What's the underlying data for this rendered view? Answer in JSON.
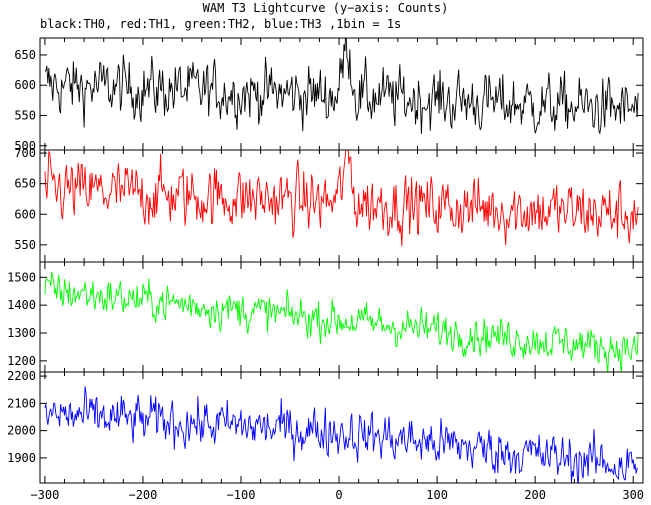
{
  "title": "WAM T3 Lightcurve (y−axis: Counts)",
  "subtitle": "black:TH0, red:TH1, green:TH2, blue:TH3 ,1bin = 1s",
  "chart_data": {
    "type": "line",
    "x_range": [
      -305,
      310
    ],
    "x_ticks": [
      -300,
      -200,
      -100,
      0,
      100,
      200,
      300
    ],
    "x_tick_labels": [
      "−300",
      "−200",
      "−100",
      "0",
      "100",
      "200",
      "300"
    ],
    "bin_size_s": 1,
    "panels": [
      {
        "name": "TH0",
        "color": "#000000",
        "ylim": [
          493,
          678
        ],
        "y_ticks": [
          500,
          550,
          600,
          650
        ],
        "y_tick_labels": [
          "500",
          "550",
          "600",
          "650"
        ],
        "trend": {
          "x": [
            -300,
            0,
            300
          ],
          "y": [
            600,
            583,
            560
          ]
        },
        "noise_sd": 25,
        "burst": {
          "peak_x": 8,
          "peak_y": 670,
          "width": 4
        }
      },
      {
        "name": "TH1",
        "color": "#ff0000",
        "ylim": [
          522,
          705
        ],
        "y_ticks": [
          550,
          600,
          650,
          700
        ],
        "y_tick_labels": [
          "550",
          "600",
          "650",
          "700"
        ],
        "trend": {
          "x": [
            -300,
            0,
            300
          ],
          "y": [
            640,
            620,
            600
          ]
        },
        "noise_sd": 26,
        "burst": {
          "peak_x": 8,
          "peak_y": 695,
          "width": 4
        }
      },
      {
        "name": "TH2",
        "color": "#00ff00",
        "ylim": [
          1160,
          1555
        ],
        "y_ticks": [
          1200,
          1300,
          1400,
          1500
        ],
        "y_tick_labels": [
          "1200",
          "1300",
          "1400",
          "1500"
        ],
        "trend": {
          "x": [
            -300,
            0,
            300
          ],
          "y": [
            1455,
            1345,
            1240
          ]
        },
        "noise_sd": 35,
        "burst": null
      },
      {
        "name": "TH3",
        "color": "#0000ff",
        "ylim": [
          1808,
          2215
        ],
        "y_ticks": [
          1900,
          2000,
          2100,
          2200
        ],
        "y_tick_labels": [
          "1900",
          "2000",
          "2100",
          "2200"
        ],
        "trend": {
          "x": [
            -300,
            0,
            300
          ],
          "y": [
            2060,
            1995,
            1870
          ]
        },
        "noise_sd": 45,
        "burst": null
      }
    ]
  }
}
